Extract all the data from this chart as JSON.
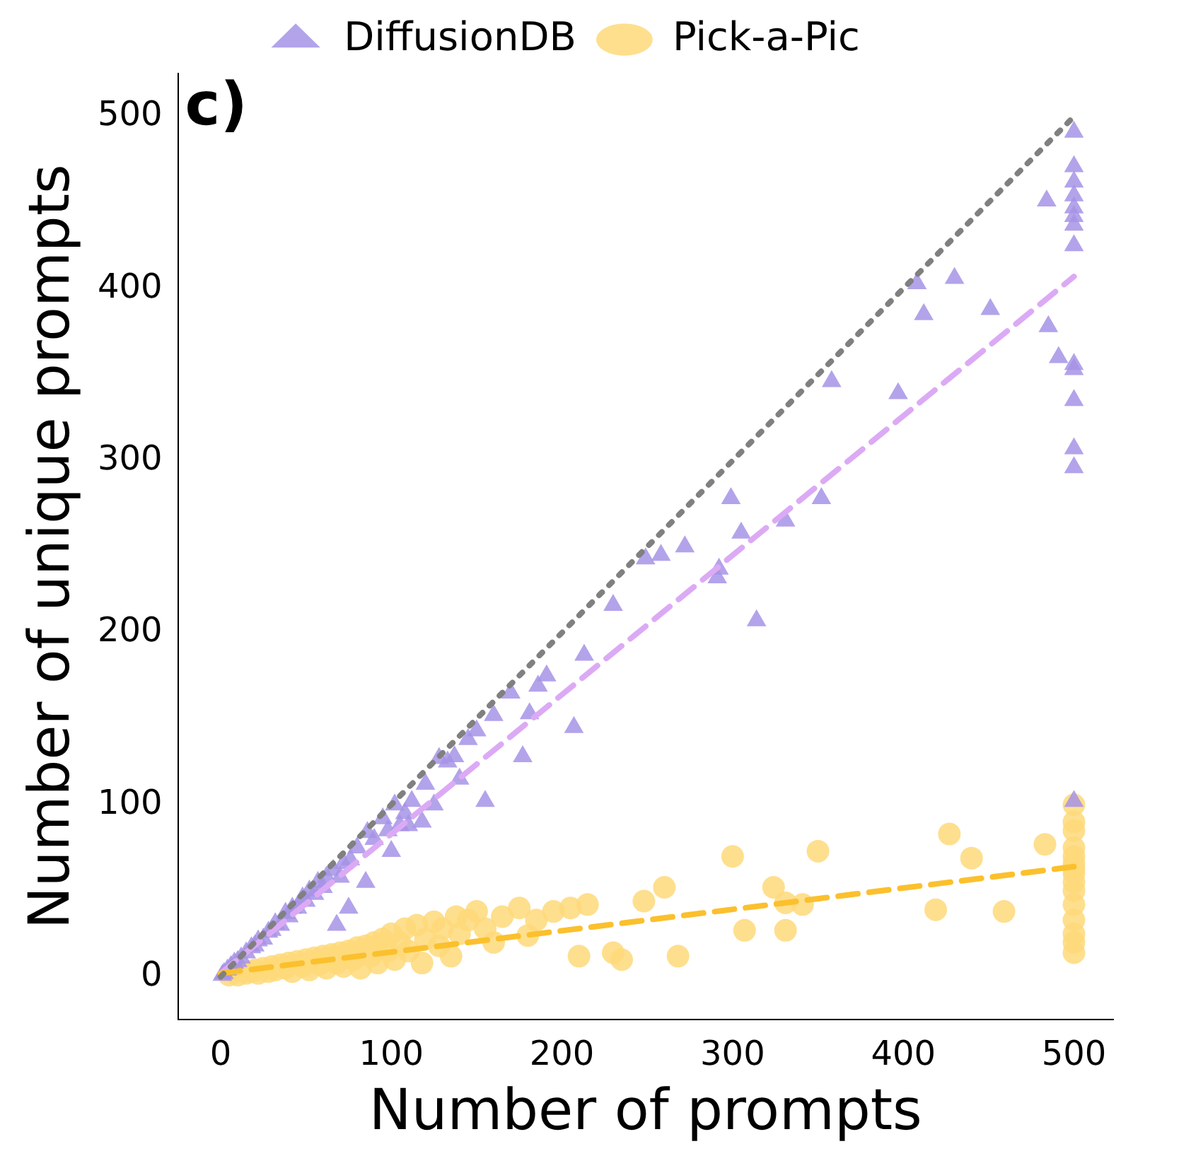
{
  "chart_data": {
    "type": "scatter",
    "xlabel": "Number of prompts",
    "ylabel": "Number of unique prompts",
    "annotations": [
      "c)"
    ],
    "xlim": [
      -25,
      523
    ],
    "xticks": [
      0,
      100,
      200,
      300,
      400,
      500
    ],
    "ylim": [
      -25,
      525
    ],
    "yticks": [
      0,
      100,
      200,
      300,
      400,
      500
    ],
    "grid": false,
    "legend": "top",
    "series": [
      {
        "type": "line",
        "color": "#808080",
        "line_style": "dotted",
        "marker": "none",
        "x": [
          0,
          500
        ],
        "values": [
          0,
          500
        ]
      },
      {
        "name": "Pick-a-Pic",
        "type": "scatter",
        "marker": "circle",
        "color": "#fed97a",
        "x": [
          5,
          10,
          15,
          18,
          20,
          22,
          25,
          28,
          30,
          32,
          35,
          38,
          40,
          42,
          45,
          48,
          50,
          52,
          55,
          58,
          60,
          62,
          65,
          68,
          70,
          72,
          75,
          78,
          80,
          82,
          85,
          88,
          90,
          92,
          95,
          98,
          100,
          102,
          105,
          108,
          110,
          115,
          118,
          120,
          125,
          128,
          130,
          135,
          138,
          140,
          145,
          150,
          155,
          160,
          165,
          175,
          180,
          185,
          195,
          205,
          210,
          215,
          230,
          235,
          248,
          260,
          268,
          300,
          307,
          324,
          331,
          331,
          341,
          350,
          419,
          427,
          440,
          459,
          483,
          500,
          500,
          500,
          500,
          500,
          500,
          500,
          500,
          500,
          500,
          500,
          500,
          500,
          500,
          500
        ],
        "values": [
          1,
          1,
          2,
          3,
          4,
          2,
          5,
          3,
          6,
          4,
          7,
          5,
          8,
          3,
          9,
          6,
          10,
          4,
          11,
          7,
          12,
          5,
          13,
          8,
          14,
          6,
          15,
          10,
          17,
          5,
          18,
          12,
          20,
          8,
          22,
          15,
          25,
          10,
          20,
          28,
          15,
          30,
          8,
          22,
          32,
          18,
          28,
          12,
          35,
          25,
          33,
          38,
          28,
          20,
          35,
          40,
          24,
          33,
          38,
          40,
          12,
          42,
          14,
          10,
          44,
          52,
          12,
          70,
          27,
          52,
          27,
          43,
          42,
          73,
          39,
          83,
          69,
          38,
          77,
          100,
          90,
          85,
          75,
          70,
          66,
          63,
          60,
          55,
          50,
          42,
          33,
          25,
          20,
          14
        ]
      },
      {
        "name": "DiffusionDB",
        "type": "scatter",
        "marker": "triangle",
        "color": "#a693e6",
        "x": [
          500,
          500,
          500,
          500,
          500,
          500,
          500,
          500,
          500,
          500,
          500,
          500,
          500,
          500,
          484,
          485,
          491,
          451,
          430,
          412,
          408,
          397,
          358,
          352,
          331,
          314,
          305,
          299,
          292,
          291,
          272,
          258,
          249,
          230,
          213,
          207,
          191,
          186,
          181,
          177,
          155,
          170,
          160,
          150,
          145,
          137,
          133,
          128,
          120,
          118,
          112,
          108,
          105,
          102,
          98,
          95,
          90,
          86,
          80,
          76,
          72,
          70,
          66,
          62,
          60,
          57,
          55,
          52,
          50,
          48,
          45,
          42,
          40,
          38,
          35,
          32,
          30,
          28,
          25,
          22,
          20,
          18,
          15,
          12,
          10,
          8,
          6,
          4,
          2,
          1,
          75,
          68,
          85,
          100,
          110,
          125,
          140
        ],
        "values": [
          491,
          471,
          462,
          454,
          447,
          442,
          437,
          425,
          356,
          353,
          335,
          307,
          296,
          102,
          451,
          378,
          360,
          388,
          406,
          385,
          403,
          339,
          346,
          278,
          265,
          207,
          258,
          278,
          237,
          232,
          250,
          245,
          243,
          216,
          187,
          145,
          175,
          169,
          153,
          128,
          102,
          165,
          152,
          143,
          138,
          128,
          125,
          127,
          112,
          90,
          102,
          95,
          88,
          100,
          85,
          92,
          80,
          84,
          75,
          68,
          66,
          58,
          62,
          58,
          52,
          55,
          48,
          50,
          44,
          46,
          40,
          40,
          35,
          37,
          30,
          31,
          27,
          26,
          22,
          21,
          18,
          17,
          14,
          11,
          9,
          8,
          6,
          4,
          2,
          1,
          40,
          30,
          55,
          73,
          88,
          100,
          115
        ]
      },
      {
        "type": "line",
        "color": "#fbc02d",
        "line_style": "dashed",
        "marker": "none",
        "x": [
          0,
          500
        ],
        "values": [
          2,
          64
        ]
      },
      {
        "type": "line",
        "color": "#dcaaf5",
        "line_style": "dashed",
        "marker": "none",
        "x": [
          0,
          500
        ],
        "values": [
          2,
          407
        ]
      }
    ]
  }
}
